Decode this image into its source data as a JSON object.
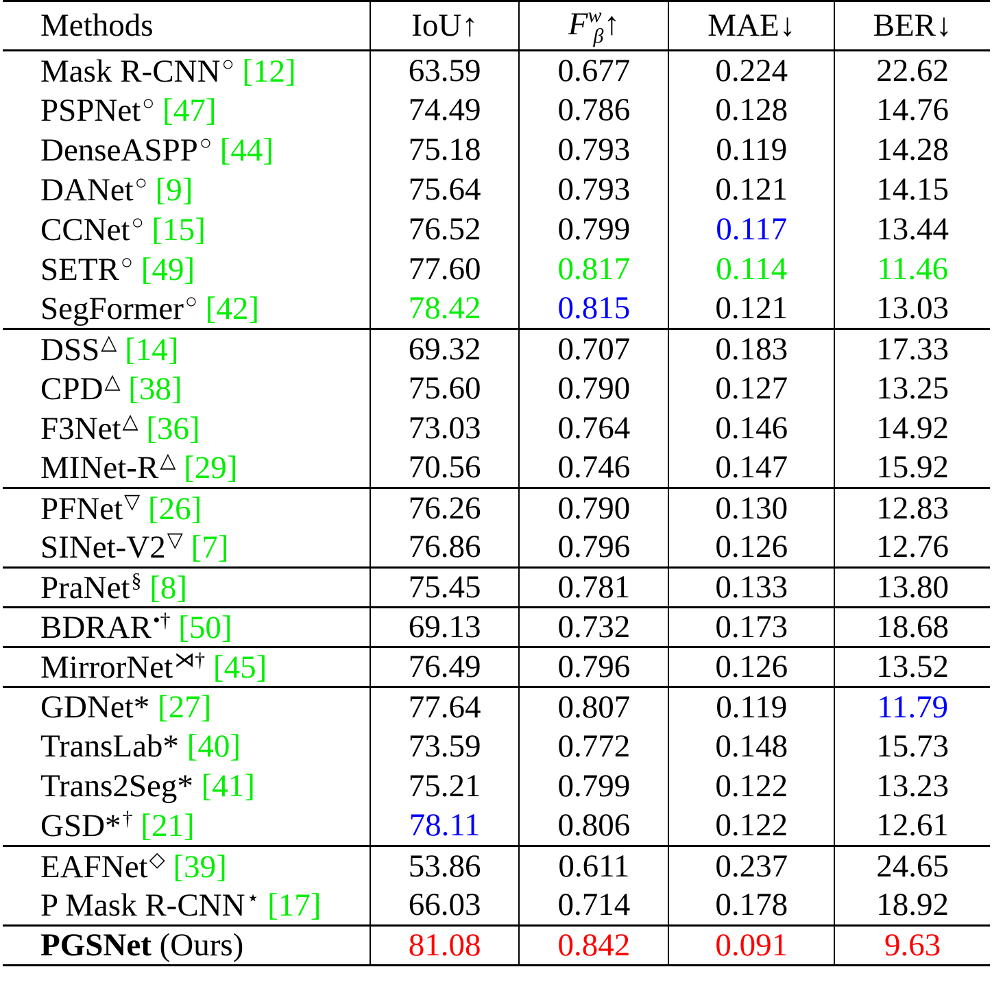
{
  "table": {
    "headers": {
      "methods": "Methods",
      "iou": "IoU↑",
      "fbeta": {
        "base": "F",
        "sup": "w",
        "sub": "β",
        "arrow": "↑"
      },
      "mae": "MAE↓",
      "ber": "BER↓"
    },
    "rows": [
      {
        "method": "Mask R-CNN",
        "sup": "○",
        "cite": "12",
        "iou": "63.59",
        "fbeta": "0.677",
        "mae": "0.224",
        "ber": "22.62"
      },
      {
        "method": "PSPNet",
        "sup": "○",
        "cite": "47",
        "iou": "74.49",
        "fbeta": "0.786",
        "mae": "0.128",
        "ber": "14.76"
      },
      {
        "method": "DenseASPP",
        "sup": "○",
        "cite": "44",
        "iou": "75.18",
        "fbeta": "0.793",
        "mae": "0.119",
        "ber": "14.28"
      },
      {
        "method": "DANet",
        "sup": "○",
        "cite": "9",
        "iou": "75.64",
        "fbeta": "0.793",
        "mae": "0.121",
        "ber": "14.15"
      },
      {
        "method": "CCNet",
        "sup": "○",
        "cite": "15",
        "iou": "76.52",
        "fbeta": "0.799",
        "mae": "0.117",
        "ber": "13.44"
      },
      {
        "method": "SETR",
        "sup": "○",
        "cite": "49",
        "iou": "77.60",
        "fbeta": "0.817",
        "mae": "0.114",
        "ber": "11.46"
      },
      {
        "method": "SegFormer",
        "sup": "○",
        "cite": "42",
        "iou": "78.42",
        "fbeta": "0.815",
        "mae": "0.121",
        "ber": "13.03"
      },
      {
        "method": "DSS",
        "sup": "△",
        "cite": "14",
        "iou": "69.32",
        "fbeta": "0.707",
        "mae": "0.183",
        "ber": "17.33"
      },
      {
        "method": "CPD",
        "sup": "△",
        "cite": "38",
        "iou": "75.60",
        "fbeta": "0.790",
        "mae": "0.127",
        "ber": "13.25"
      },
      {
        "method": "F3Net",
        "sup": "△",
        "cite": "36",
        "iou": "73.03",
        "fbeta": "0.764",
        "mae": "0.146",
        "ber": "14.92"
      },
      {
        "method": "MINet-R",
        "sup": "△",
        "cite": "29",
        "iou": "70.56",
        "fbeta": "0.746",
        "mae": "0.147",
        "ber": "15.92"
      },
      {
        "method": "PFNet",
        "sup": "▽",
        "cite": "26",
        "iou": "76.26",
        "fbeta": "0.790",
        "mae": "0.130",
        "ber": "12.83"
      },
      {
        "method": "SINet-V2",
        "sup": "▽",
        "cite": "7",
        "iou": "76.86",
        "fbeta": "0.796",
        "mae": "0.126",
        "ber": "12.76"
      },
      {
        "method": "PraNet",
        "sup": "§",
        "cite": "8",
        "iou": "75.45",
        "fbeta": "0.781",
        "mae": "0.133",
        "ber": "13.80"
      },
      {
        "method": "BDRAR",
        "sup": "•†",
        "cite": "50",
        "iou": "69.13",
        "fbeta": "0.732",
        "mae": "0.173",
        "ber": "18.68"
      },
      {
        "method": "MirrorNet",
        "sup": "⋊†",
        "cite": "45",
        "iou": "76.49",
        "fbeta": "0.796",
        "mae": "0.126",
        "ber": "13.52"
      },
      {
        "method": "GDNet*",
        "sup": "",
        "cite": "27",
        "iou": "77.64",
        "fbeta": "0.807",
        "mae": "0.119",
        "ber": "11.79"
      },
      {
        "method": "TransLab*",
        "sup": "",
        "cite": "40",
        "iou": "73.59",
        "fbeta": "0.772",
        "mae": "0.148",
        "ber": "15.73"
      },
      {
        "method": "Trans2Seg*",
        "sup": "",
        "cite": "41",
        "iou": "75.21",
        "fbeta": "0.799",
        "mae": "0.122",
        "ber": "13.23"
      },
      {
        "method": "GSD*",
        "sup": "†",
        "cite": "21",
        "iou": "78.11",
        "fbeta": "0.806",
        "mae": "0.122",
        "ber": "12.61"
      },
      {
        "method": "EAFNet",
        "sup": "◇",
        "cite": "39",
        "iou": "53.86",
        "fbeta": "0.611",
        "mae": "0.237",
        "ber": "24.65"
      },
      {
        "method": "P Mask R-CNN",
        "sup": "⋆",
        "cite": "17",
        "iou": "66.03",
        "fbeta": "0.714",
        "mae": "0.178",
        "ber": "18.92"
      },
      {
        "method": "PGSNet",
        "suffix": "(Ours)",
        "sup": "",
        "cite": "",
        "iou": "81.08",
        "fbeta": "0.842",
        "mae": "0.091",
        "ber": "9.63"
      }
    ],
    "group_starts": [
      7,
      11,
      13,
      14,
      15,
      16,
      20,
      22
    ],
    "highlights": {
      "best": "#ff0000",
      "second": "#00ee00",
      "third": "#0000ff",
      "cells": [
        {
          "row": 4,
          "col": "mae",
          "rank": "third"
        },
        {
          "row": 5,
          "col": "fbeta",
          "rank": "second"
        },
        {
          "row": 5,
          "col": "mae",
          "rank": "second"
        },
        {
          "row": 5,
          "col": "ber",
          "rank": "second"
        },
        {
          "row": 6,
          "col": "iou",
          "rank": "second"
        },
        {
          "row": 6,
          "col": "fbeta",
          "rank": "third"
        },
        {
          "row": 16,
          "col": "ber",
          "rank": "third"
        },
        {
          "row": 19,
          "col": "iou",
          "rank": "third"
        },
        {
          "row": 22,
          "col": "iou",
          "rank": "best"
        },
        {
          "row": 22,
          "col": "fbeta",
          "rank": "best"
        },
        {
          "row": 22,
          "col": "mae",
          "rank": "best"
        },
        {
          "row": 22,
          "col": "ber",
          "rank": "best"
        }
      ]
    },
    "citation_color": "#00ee00"
  }
}
